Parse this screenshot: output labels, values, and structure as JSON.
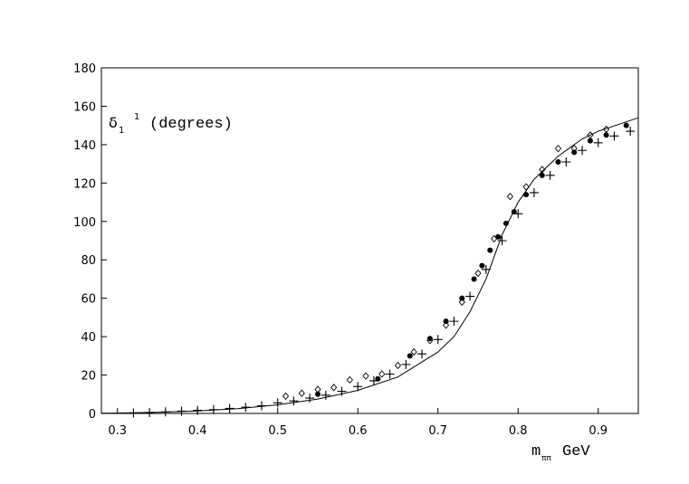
{
  "chart_data": {
    "type": "scatter",
    "y_label": {
      "symbol": "δ",
      "sub": "1",
      "sup": "1",
      "text": "(degrees)"
    },
    "x_label": {
      "symbol": "m",
      "sub": "ππ",
      "text": "GeV"
    },
    "xlim": [
      0.28,
      0.95
    ],
    "ylim": [
      0,
      180
    ],
    "xticks": [
      0.3,
      0.4,
      0.5,
      0.6,
      0.7,
      0.8,
      0.9
    ],
    "yticks": [
      0,
      20,
      40,
      60,
      80,
      100,
      120,
      140,
      160,
      180
    ],
    "series": [
      {
        "marker": "line",
        "color": "#000000",
        "x": [
          0.28,
          0.3,
          0.35,
          0.4,
          0.45,
          0.5,
          0.55,
          0.6,
          0.65,
          0.7,
          0.72,
          0.74,
          0.76,
          0.78,
          0.8,
          0.82,
          0.85,
          0.88,
          0.9,
          0.95
        ],
        "values": [
          0.1,
          0.2,
          0.6,
          1.3,
          2.5,
          4.5,
          7.5,
          12,
          19,
          32,
          40,
          53,
          70,
          93,
          110,
          122,
          134,
          143,
          147,
          154
        ]
      },
      {
        "marker": "plus",
        "color": "#000000",
        "x": [
          0.32,
          0.34,
          0.36,
          0.38,
          0.4,
          0.42,
          0.44,
          0.46,
          0.48,
          0.5,
          0.52,
          0.54,
          0.56,
          0.58,
          0.6,
          0.62,
          0.64,
          0.66,
          0.68,
          0.7,
          0.72,
          0.74,
          0.76,
          0.78,
          0.8,
          0.82,
          0.84,
          0.86,
          0.88,
          0.9,
          0.92,
          0.94
        ],
        "values": [
          0.3,
          0.5,
          0.8,
          1.2,
          1.6,
          2,
          2.6,
          3.2,
          4,
          5.5,
          6.5,
          8,
          9.5,
          11.5,
          14,
          17,
          20.5,
          25.5,
          31,
          38.5,
          48,
          61,
          75,
          90,
          104,
          115,
          124,
          131,
          137,
          141,
          144.5,
          147
        ]
      },
      {
        "marker": "circle",
        "color": "#000000",
        "x": [
          0.55,
          0.625,
          0.665,
          0.69,
          0.71,
          0.73,
          0.745,
          0.755,
          0.765,
          0.775,
          0.785,
          0.795,
          0.81,
          0.83,
          0.85,
          0.87,
          0.89,
          0.91,
          0.935
        ],
        "values": [
          10,
          18,
          30,
          39,
          48,
          60,
          70,
          77,
          85,
          92,
          99,
          105,
          114,
          124,
          131,
          136,
          142,
          145,
          150
        ]
      },
      {
        "marker": "diamond",
        "color": "#000000",
        "x": [
          0.51,
          0.53,
          0.55,
          0.57,
          0.59,
          0.61,
          0.63,
          0.65,
          0.67,
          0.69,
          0.71,
          0.73,
          0.75,
          0.77,
          0.79,
          0.81,
          0.83,
          0.85,
          0.87,
          0.89,
          0.91
        ],
        "values": [
          9,
          10.5,
          12.5,
          13.5,
          17.5,
          19.5,
          20.5,
          25,
          32,
          38,
          46,
          58,
          73,
          91,
          113,
          118,
          127,
          138,
          138,
          145,
          148
        ]
      }
    ]
  }
}
